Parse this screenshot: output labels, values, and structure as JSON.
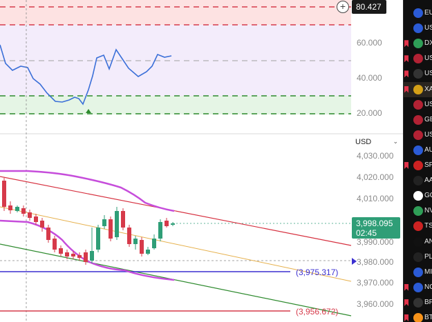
{
  "rsi_pane": {
    "current_value": "80.427",
    "levels": [
      "60.000",
      "40.000",
      "20.000"
    ]
  },
  "price_pane": {
    "currency_selector": "USD",
    "price_labels": [
      "4,030.000",
      "4,020.000",
      "4,010.000",
      "3,990.000",
      "3,980.000",
      "3,970.000",
      "3,960.000"
    ],
    "last_price": "3,998.095",
    "countdown": "02:45",
    "hline_labels": [
      {
        "text": "(3,975.317)",
        "color": "#3b2fd1"
      },
      {
        "text": "(3,956.672)",
        "color": "#d63a4a"
      }
    ]
  },
  "watchlist": {
    "items": [
      {
        "symbol": "EU",
        "icon": "eu-flag-icon",
        "color": "#2b5bd6",
        "flag": false
      },
      {
        "symbol": "US",
        "icon": "100-icon",
        "color": "#2b5bd6",
        "flag": false
      },
      {
        "symbol": "DX",
        "icon": "dollar-icon",
        "color": "#2f9e57",
        "flag": true
      },
      {
        "symbol": "US",
        "icon": "us-flag-icon",
        "color": "#b22234",
        "flag": true
      },
      {
        "symbol": "US",
        "icon": "oil-drop-icon",
        "color": "#333333",
        "flag": true
      },
      {
        "symbol": "XA",
        "icon": "gold-icon",
        "color": "#d4a017",
        "flag": true
      },
      {
        "symbol": "US",
        "icon": "us-flag-icon",
        "color": "#b22234",
        "flag": false
      },
      {
        "symbol": "GE",
        "icon": "gb-flag-icon",
        "color": "#b22234",
        "flag": false
      },
      {
        "symbol": "US",
        "icon": "us-flag-icon",
        "color": "#b22234",
        "flag": false
      },
      {
        "symbol": "AU",
        "icon": "au-flag-icon",
        "color": "#2b5bd6",
        "flag": false
      },
      {
        "symbol": "SP",
        "icon": "sp-icon",
        "color": "#cc2222",
        "flag": true
      },
      {
        "symbol": "AA",
        "icon": "apple-icon",
        "color": "#222222",
        "flag": false
      },
      {
        "symbol": "GO",
        "icon": "google-icon",
        "color": "#ffffff",
        "flag": false
      },
      {
        "symbol": "NV",
        "icon": "nvidia-icon",
        "color": "#2f9e57",
        "flag": false
      },
      {
        "symbol": "TS",
        "icon": "tesla-icon",
        "color": "#cc2222",
        "flag": false
      },
      {
        "symbol": "AN",
        "icon": "amd-icon",
        "color": "#111111",
        "flag": false
      },
      {
        "symbol": "PL",
        "icon": "pl-icon",
        "color": "#222222",
        "flag": false
      },
      {
        "symbol": "MI",
        "icon": "mi-icon",
        "color": "#2b5bd6",
        "flag": false
      },
      {
        "symbol": "NC",
        "icon": "100-icon",
        "color": "#2b5bd6",
        "flag": true
      },
      {
        "symbol": "BF",
        "icon": "oil-drop-icon",
        "color": "#333333",
        "flag": true
      },
      {
        "symbol": "BT",
        "icon": "bitcoin-icon",
        "color": "#f7931a",
        "flag": true
      }
    ]
  },
  "colors": {
    "bull": "#2f9e77",
    "bear": "#d63a4a",
    "rsi_line": "#3a6fd8",
    "bollinger": "#c64ddb",
    "upper_trend": "#d6303f",
    "lower_trend": "#2d8a2d",
    "mid_trend": "#e6b04b",
    "hline_blue": "#3b2fd1",
    "hline_red": "#d63a4a"
  }
}
